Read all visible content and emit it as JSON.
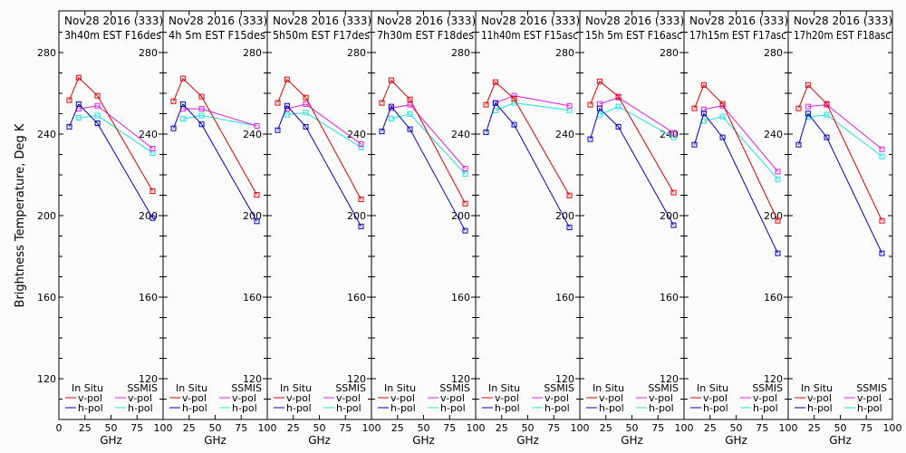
{
  "chart_data": {
    "type": "line",
    "ylabel": "Brightness Temperature, Deg K",
    "xlabel": "GHz",
    "xlim": [
      0,
      100
    ],
    "ylim": [
      110,
      290
    ],
    "xticks": [
      0,
      25,
      50,
      75,
      100
    ],
    "yticks": [
      120,
      160,
      200,
      240,
      280
    ],
    "legend": {
      "position": "bottom",
      "group_titles": [
        "In Situ",
        "SSMIS"
      ],
      "entries": [
        {
          "group": "In Situ",
          "label": "v-pol",
          "color": "#e00000"
        },
        {
          "group": "In Situ",
          "label": "h-pol",
          "color": "#0000c0"
        },
        {
          "group": "SSMIS",
          "label": "v-pol",
          "color": "#e020e0"
        },
        {
          "group": "SSMIS",
          "label": "h-pol",
          "color": "#20e0e0"
        }
      ]
    },
    "series_colors": {
      "insitu_v": "#e00000",
      "insitu_h": "#0000c0",
      "ssmis_v": "#e020e0",
      "ssmis_h": "#20e0e0"
    },
    "panels": [
      {
        "title_line1": "Nov28 2016 (333)",
        "title_line2": "3h40m  EST  F16des",
        "insitu_v": {
          "x": [
            10,
            19,
            37,
            90
          ],
          "y": [
            256.6,
            267.7,
            258.8,
            212.0
          ]
        },
        "insitu_h": {
          "x": [
            10,
            19,
            37,
            90
          ],
          "y": [
            243.6,
            254.7,
            245.3,
            198.8
          ]
        },
        "ssmis_v": {
          "x": [
            19,
            37,
            90
          ],
          "y": [
            252.4,
            253.9,
            232.9
          ]
        },
        "ssmis_h": {
          "x": [
            19,
            37,
            90
          ],
          "y": [
            248.0,
            249.1,
            230.7
          ]
        }
      },
      {
        "title_line1": "Nov28 2016 (333)",
        "title_line2": "4h 5m  EST  F15des",
        "insitu_v": {
          "x": [
            10,
            19,
            37,
            90
          ],
          "y": [
            256.1,
            267.3,
            258.4,
            210.2
          ]
        },
        "insitu_h": {
          "x": [
            10,
            19,
            37,
            90
          ],
          "y": [
            242.8,
            254.7,
            244.8,
            197.2
          ]
        },
        "ssmis_v": {
          "x": [
            19,
            37,
            90
          ],
          "y": [
            252.4,
            252.4,
            244.0
          ]
        },
        "ssmis_h": {
          "x": [
            19,
            37,
            90
          ],
          "y": [
            247.5,
            249.1,
            244.0
          ]
        }
      },
      {
        "title_line1": "Nov28 2016 (333)",
        "title_line2": "5h50m  EST  F17des",
        "insitu_v": {
          "x": [
            10,
            19,
            37,
            90
          ],
          "y": [
            255.3,
            266.8,
            257.9,
            208.0
          ]
        },
        "insitu_h": {
          "x": [
            10,
            19,
            37,
            90
          ],
          "y": [
            241.9,
            253.9,
            243.6,
            194.7
          ]
        },
        "ssmis_v": {
          "x": [
            19,
            37,
            90
          ],
          "y": [
            252.4,
            254.7,
            235.1
          ]
        },
        "ssmis_h": {
          "x": [
            19,
            37,
            90
          ],
          "y": [
            249.5,
            250.5,
            233.5
          ]
        }
      },
      {
        "title_line1": "Nov28 2016 (333)",
        "title_line2": "7h30m  EST  F18des",
        "insitu_v": {
          "x": [
            10,
            19,
            37,
            90
          ],
          "y": [
            255.3,
            266.4,
            257.0,
            205.9
          ]
        },
        "insitu_h": {
          "x": [
            10,
            19,
            37,
            90
          ],
          "y": [
            241.3,
            253.5,
            242.4,
            192.6
          ]
        },
        "ssmis_v": {
          "x": [
            19,
            37,
            90
          ],
          "y": [
            252.7,
            254.4,
            223.1
          ]
        },
        "ssmis_h": {
          "x": [
            19,
            37,
            90
          ],
          "y": [
            247.6,
            249.8,
            220.4
          ]
        }
      },
      {
        "title_line1": "Nov28 2016 (333)",
        "title_line2": "11h40m  EST  F15asc",
        "insitu_v": {
          "x": [
            10,
            19,
            37,
            90
          ],
          "y": [
            254.4,
            265.5,
            257.3,
            209.9
          ]
        },
        "insitu_h": {
          "x": [
            10,
            19,
            37,
            90
          ],
          "y": [
            240.9,
            255.2,
            244.6,
            194.2
          ]
        },
        "ssmis_v": {
          "x": [
            19,
            37,
            90
          ],
          "y": [
            255.3,
            258.8,
            253.9
          ]
        },
        "ssmis_h": {
          "x": [
            19,
            37,
            90
          ],
          "y": [
            251.6,
            255.3,
            251.7
          ]
        }
      },
      {
        "title_line1": "Nov28 2016 (333)",
        "title_line2": "15h 5m  EST  F16asc",
        "insitu_v": {
          "x": [
            10,
            19,
            37,
            90
          ],
          "y": [
            254.4,
            265.9,
            258.4,
            211.3
          ]
        },
        "insitu_h": {
          "x": [
            10,
            19,
            37,
            90
          ],
          "y": [
            237.5,
            252.6,
            243.6,
            195.3
          ]
        },
        "ssmis_v": {
          "x": [
            19,
            37,
            90
          ],
          "y": [
            254.8,
            257.9,
            240.6
          ]
        },
        "ssmis_h": {
          "x": [
            19,
            37,
            90
          ],
          "y": [
            249.5,
            253.5,
            238.4
          ]
        }
      },
      {
        "title_line1": "Nov28 2016 (333)",
        "title_line2": "17h15m  EST  F17asc",
        "insitu_v": {
          "x": [
            10,
            19,
            37,
            90
          ],
          "y": [
            252.6,
            264.1,
            254.8,
            197.5
          ]
        },
        "insitu_h": {
          "x": [
            10,
            19,
            37,
            90
          ],
          "y": [
            234.8,
            250.1,
            238.4,
            181.5
          ]
        },
        "ssmis_v": {
          "x": [
            19,
            37,
            90
          ],
          "y": [
            252.1,
            253.9,
            221.6
          ]
        },
        "ssmis_h": {
          "x": [
            19,
            37,
            90
          ],
          "y": [
            246.4,
            248.6,
            217.9
          ]
        }
      },
      {
        "title_line1": "Nov28 2016 (333)",
        "title_line2": "17h20m  EST  F18asc",
        "insitu_v": {
          "x": [
            10,
            19,
            37,
            90
          ],
          "y": [
            252.6,
            264.1,
            254.8,
            197.5
          ]
        },
        "insitu_h": {
          "x": [
            10,
            19,
            37,
            90
          ],
          "y": [
            234.8,
            250.1,
            238.4,
            181.5
          ]
        },
        "ssmis_v": {
          "x": [
            19,
            37,
            90
          ],
          "y": [
            253.5,
            254.4,
            232.6
          ]
        },
        "ssmis_h": {
          "x": [
            19,
            37,
            90
          ],
          "y": [
            248.3,
            249.5,
            229.0
          ]
        }
      }
    ]
  }
}
